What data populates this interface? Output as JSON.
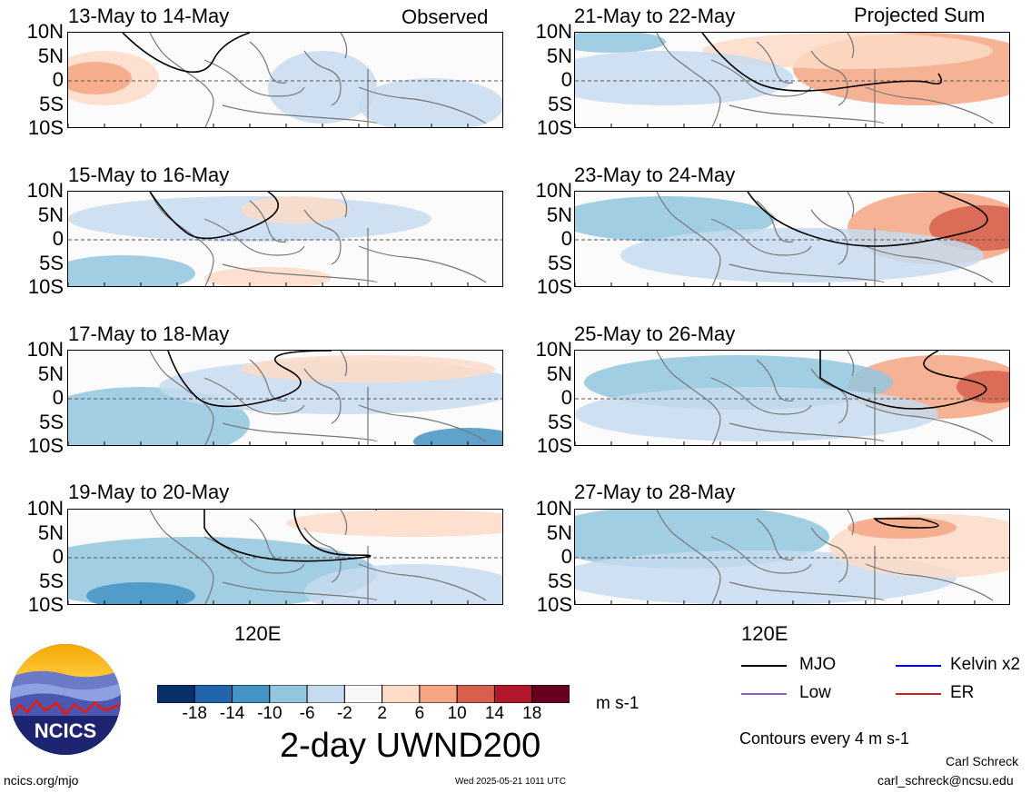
{
  "observed_label": "Observed",
  "projected_label": "Projected Sum",
  "y_ticks": [
    "10N",
    "5N",
    "0",
    "5S",
    "10S"
  ],
  "x_tick": "120E",
  "panels_left": [
    {
      "title": "13-May to 14-May"
    },
    {
      "title": "15-May to 16-May"
    },
    {
      "title": "17-May to 18-May"
    },
    {
      "title": "19-May to 20-May"
    }
  ],
  "panels_right": [
    {
      "title": "21-May to 22-May"
    },
    {
      "title": "23-May to 24-May"
    },
    {
      "title": "25-May to 26-May"
    },
    {
      "title": "27-May to 28-May"
    }
  ],
  "colorbar": {
    "colors": [
      "#08306b",
      "#2166ac",
      "#4393c3",
      "#92c5de",
      "#c6dbef",
      "#f7f7f7",
      "#fddbc7",
      "#f4a582",
      "#d6604d",
      "#b2182b",
      "#67001f"
    ],
    "labels": [
      "-18",
      "-14",
      "-10",
      "-6",
      "-2",
      "2",
      "6",
      "10",
      "14",
      "18"
    ]
  },
  "units": "m s-1",
  "main_title": "2-day UWND200",
  "legend": [
    {
      "label": "MJO",
      "color": "#000000"
    },
    {
      "label": "Kelvin x2",
      "color": "#0000cc"
    },
    {
      "label": "Low",
      "color": "#9955cc"
    },
    {
      "label": "ER",
      "color": "#cc2222"
    }
  ],
  "contour_note": "Contours every 4 m s-1",
  "logo_text": "NCICS",
  "footer_url": "ncics.org/mjo",
  "timestamp": "Wed 2025-05-21 1011 UTC",
  "credit_name": "Carl Schreck",
  "credit_email": "carl_schreck@ncsu.edu"
}
